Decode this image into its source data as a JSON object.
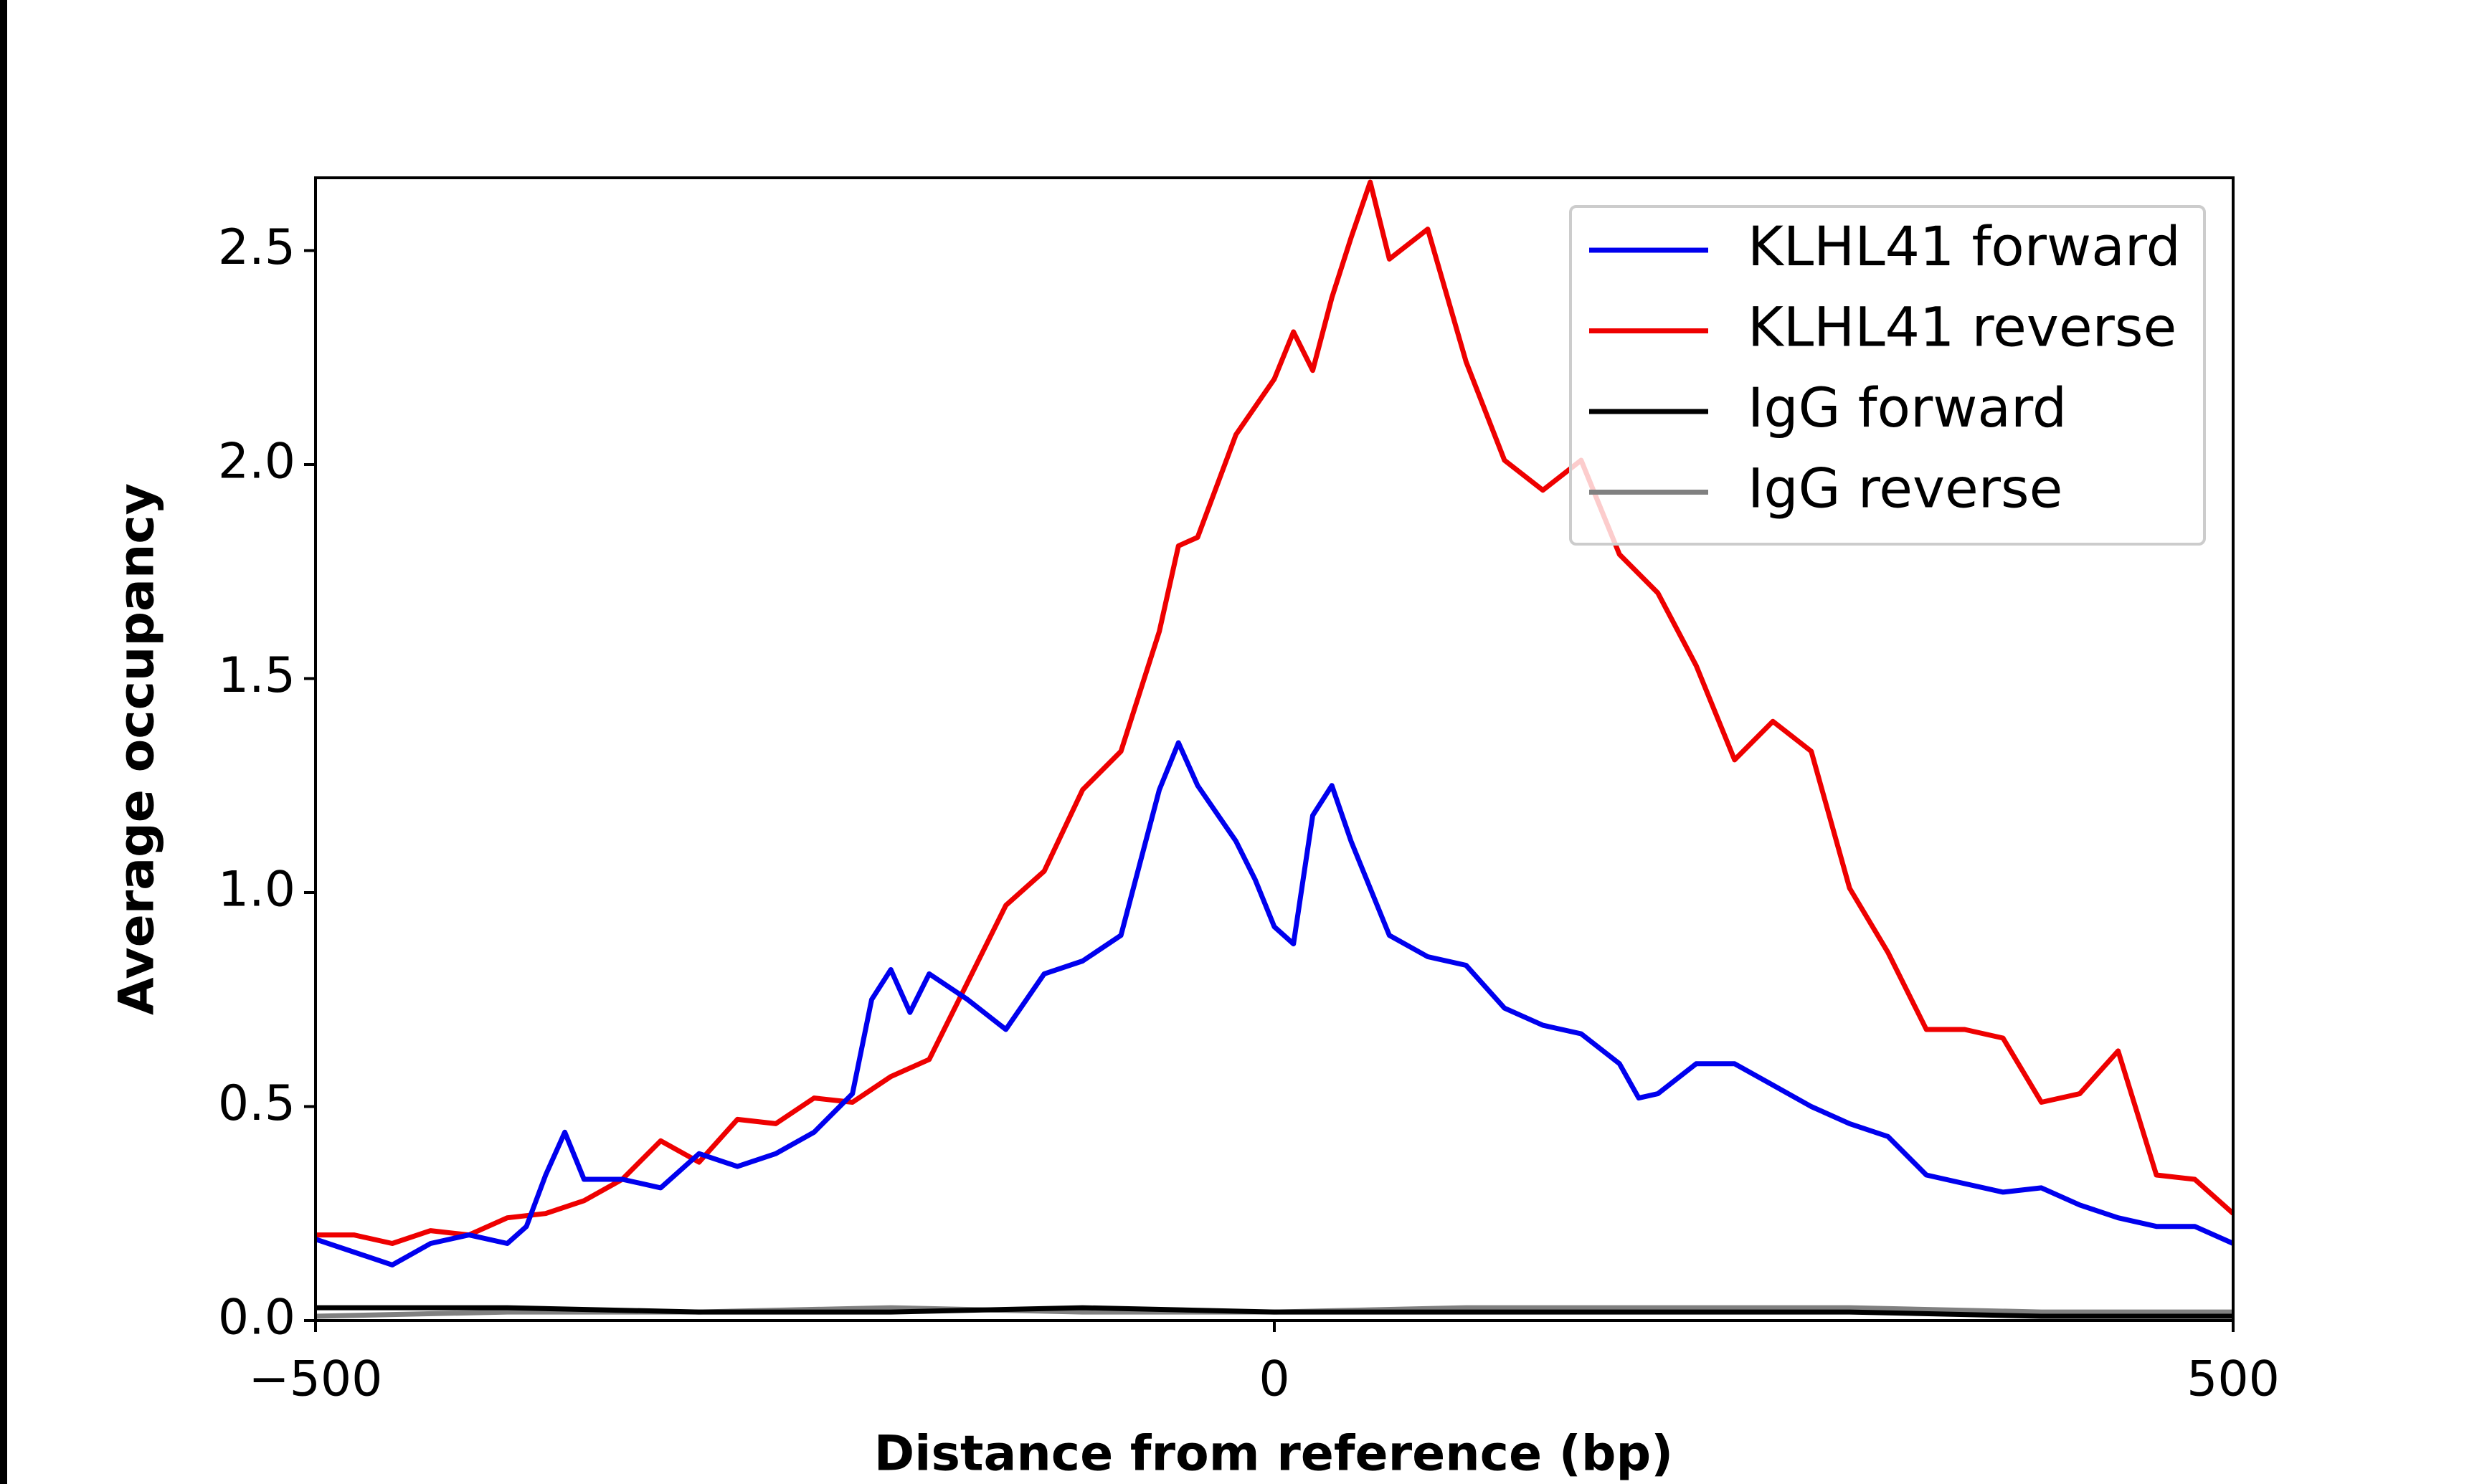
{
  "chart_data": {
    "type": "line",
    "xlabel": "Distance from reference (bp)",
    "ylabel": "Average occupancy",
    "xlim": [
      -500,
      500
    ],
    "ylim": [
      0,
      2.67
    ],
    "xticks": [
      {
        "value": -500,
        "label": "−500"
      },
      0,
      500
    ],
    "yticks": [
      {
        "value": 0,
        "label": "0.0"
      },
      0.5,
      {
        "value": 1,
        "label": "1.0"
      },
      1.5,
      {
        "value": 2,
        "label": "2.0"
      },
      2.5
    ],
    "legend": "upper right",
    "series": [
      {
        "name": "KLHL41 forward",
        "color": "#0000ee",
        "x": [
          -500,
          -480,
          -460,
          -440,
          -420,
          -400,
          -390,
          -380,
          -370,
          -360,
          -340,
          -320,
          -300,
          -280,
          -260,
          -240,
          -220,
          -210,
          -200,
          -190,
          -180,
          -160,
          -140,
          -120,
          -100,
          -80,
          -60,
          -50,
          -40,
          -20,
          -10,
          0,
          10,
          20,
          30,
          40,
          60,
          80,
          100,
          120,
          140,
          160,
          180,
          190,
          200,
          220,
          240,
          260,
          280,
          300,
          320,
          340,
          360,
          380,
          400,
          420,
          440,
          460,
          480,
          500
        ],
        "values": [
          0.19,
          0.16,
          0.13,
          0.18,
          0.2,
          0.18,
          0.22,
          0.34,
          0.44,
          0.33,
          0.33,
          0.31,
          0.39,
          0.36,
          0.39,
          0.44,
          0.53,
          0.75,
          0.82,
          0.72,
          0.81,
          0.75,
          0.68,
          0.81,
          0.84,
          0.9,
          1.24,
          1.35,
          1.25,
          1.12,
          1.03,
          0.92,
          0.88,
          1.18,
          1.25,
          1.12,
          0.9,
          0.85,
          0.83,
          0.73,
          0.69,
          0.67,
          0.6,
          0.52,
          0.53,
          0.6,
          0.6,
          0.55,
          0.5,
          0.46,
          0.43,
          0.34,
          0.32,
          0.3,
          0.31,
          0.27,
          0.24,
          0.22,
          0.22,
          0.18
        ]
      },
      {
        "name": "KLHL41 reverse",
        "color": "#ee0000",
        "x": [
          -500,
          -480,
          -460,
          -440,
          -420,
          -400,
          -380,
          -360,
          -340,
          -320,
          -300,
          -280,
          -260,
          -240,
          -220,
          -200,
          -180,
          -160,
          -140,
          -120,
          -100,
          -80,
          -60,
          -50,
          -40,
          -20,
          0,
          10,
          20,
          30,
          40,
          50,
          60,
          80,
          100,
          120,
          140,
          160,
          180,
          200,
          220,
          240,
          260,
          280,
          300,
          320,
          340,
          360,
          380,
          400,
          420,
          440,
          460,
          480,
          500
        ],
        "values": [
          0.2,
          0.2,
          0.18,
          0.21,
          0.2,
          0.24,
          0.25,
          0.28,
          0.33,
          0.42,
          0.37,
          0.47,
          0.46,
          0.52,
          0.51,
          0.57,
          0.61,
          0.79,
          0.97,
          1.05,
          1.24,
          1.33,
          1.61,
          1.81,
          1.83,
          2.07,
          2.2,
          2.31,
          2.22,
          2.39,
          2.53,
          2.66,
          2.48,
          2.55,
          2.24,
          2.01,
          1.94,
          2.01,
          1.79,
          1.7,
          1.53,
          1.31,
          1.4,
          1.33,
          1.01,
          0.86,
          0.68,
          0.68,
          0.66,
          0.51,
          0.53,
          0.63,
          0.34,
          0.33,
          0.25
        ]
      },
      {
        "name": "IgG forward",
        "color": "#000000",
        "x": [
          -500,
          -400,
          -300,
          -200,
          -100,
          0,
          100,
          200,
          300,
          400,
          500
        ],
        "values": [
          0.03,
          0.03,
          0.02,
          0.02,
          0.03,
          0.02,
          0.02,
          0.02,
          0.02,
          0.01,
          0.01
        ]
      },
      {
        "name": "IgG reverse",
        "color": "#808080",
        "x": [
          -500,
          -400,
          -300,
          -200,
          -100,
          0,
          100,
          200,
          300,
          400,
          500
        ],
        "values": [
          0.01,
          0.02,
          0.02,
          0.03,
          0.02,
          0.02,
          0.03,
          0.03,
          0.03,
          0.02,
          0.02
        ]
      }
    ]
  }
}
